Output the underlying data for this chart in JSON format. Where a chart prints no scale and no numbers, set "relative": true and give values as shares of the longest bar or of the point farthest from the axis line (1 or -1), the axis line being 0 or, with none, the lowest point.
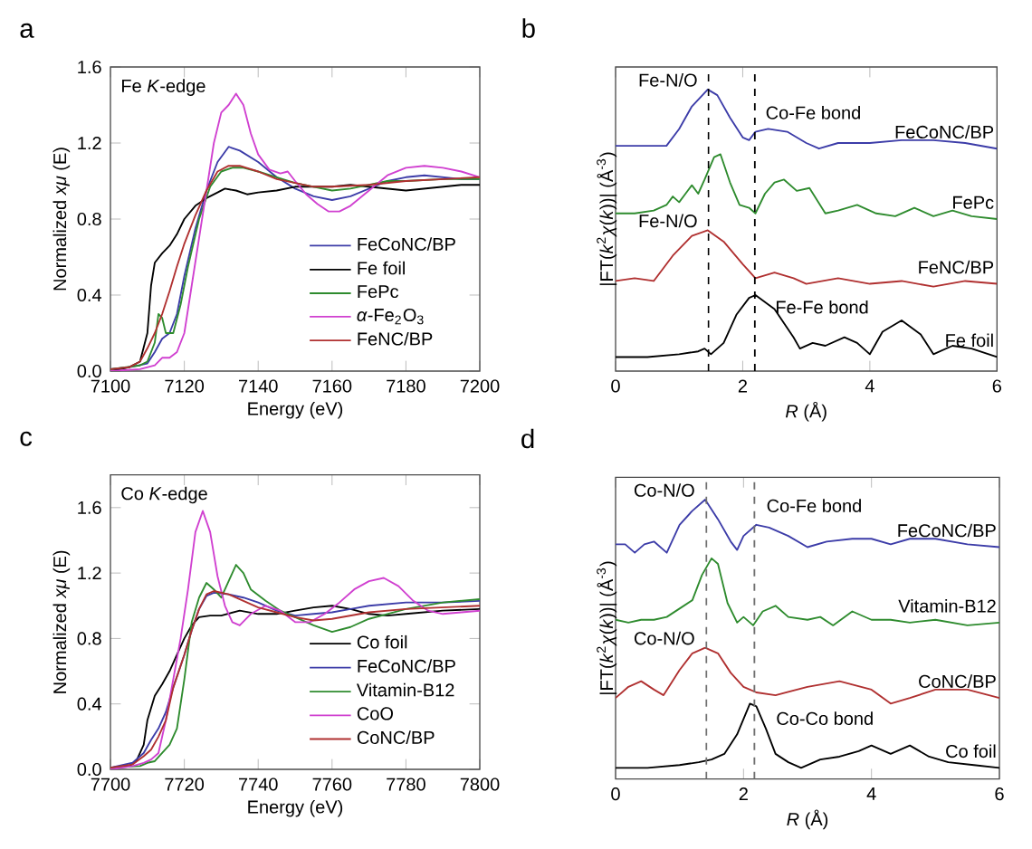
{
  "chart_data": [
    {
      "type": "line",
      "title": "a",
      "xlabel": "Energy (eV)",
      "ylabel": "Normalized *xμ* (E)",
      "xlim": [
        7100,
        7200
      ],
      "ylim": [
        0,
        1.6
      ],
      "xticks": [
        7100,
        7120,
        7140,
        7160,
        7180,
        7200
      ],
      "yticks": [
        {
          "value": 0,
          "label": "0.0"
        },
        {
          "value": 0.4,
          "label": "0.4"
        },
        {
          "value": 0.8,
          "label": "0.8"
        },
        {
          "value": 1.2,
          "label": "1.2"
        },
        {
          "value": 1.6,
          "label": "1.6"
        }
      ],
      "legend": "bottom right",
      "annotations": [
        "Fe *K*-edge"
      ],
      "series": [
        {
          "name": "FeCoNC/BP",
          "color": "#3c3ca8",
          "x": [
            7100,
            7105,
            7110,
            7112,
            7114,
            7116,
            7118,
            7120,
            7123,
            7126,
            7129,
            7132,
            7135,
            7140,
            7145,
            7150,
            7155,
            7160,
            7165,
            7170,
            7175,
            7180,
            7185,
            7190,
            7195,
            7200
          ],
          "values": [
            0.01,
            0.02,
            0.04,
            0.1,
            0.17,
            0.2,
            0.3,
            0.5,
            0.75,
            0.95,
            1.1,
            1.18,
            1.16,
            1.1,
            1.02,
            0.96,
            0.92,
            0.9,
            0.92,
            0.96,
            1.0,
            1.02,
            1.03,
            1.02,
            1.01,
            1.01
          ]
        },
        {
          "name": "Fe foil",
          "color": "#000000",
          "x": [
            7100,
            7105,
            7108,
            7110,
            7111,
            7112,
            7114,
            7116,
            7118,
            7120,
            7123,
            7126,
            7129,
            7131,
            7134,
            7137,
            7140,
            7145,
            7150,
            7155,
            7160,
            7165,
            7170,
            7175,
            7180,
            7185,
            7190,
            7195,
            7200
          ],
          "values": [
            0.0,
            0.02,
            0.05,
            0.2,
            0.45,
            0.57,
            0.62,
            0.66,
            0.72,
            0.8,
            0.87,
            0.91,
            0.94,
            0.96,
            0.95,
            0.93,
            0.94,
            0.95,
            0.97,
            0.97,
            0.97,
            0.98,
            0.97,
            0.96,
            0.95,
            0.96,
            0.97,
            0.98,
            0.98
          ]
        },
        {
          "name": "FePc",
          "color": "#2e8b2e",
          "x": [
            7100,
            7108,
            7110,
            7112,
            7113,
            7114,
            7115,
            7117,
            7119,
            7121,
            7124,
            7127,
            7130,
            7133,
            7136,
            7140,
            7145,
            7150,
            7155,
            7160,
            7165,
            7170,
            7175,
            7180,
            7190,
            7200
          ],
          "values": [
            0.01,
            0.03,
            0.05,
            0.15,
            0.3,
            0.28,
            0.2,
            0.2,
            0.35,
            0.55,
            0.8,
            0.97,
            1.05,
            1.07,
            1.07,
            1.05,
            1.02,
            0.99,
            0.97,
            0.95,
            0.96,
            0.98,
            1.0,
            1.0,
            1.01,
            1.01
          ]
        },
        {
          "name": "*α*-Fe$_{2}$O$_{3}$",
          "color": "#d040d0",
          "x": [
            7100,
            7108,
            7112,
            7114,
            7116,
            7118,
            7120,
            7122,
            7124,
            7126,
            7128,
            7130,
            7132,
            7134,
            7136,
            7138,
            7140,
            7143,
            7146,
            7148,
            7150,
            7153,
            7156,
            7159,
            7162,
            7165,
            7170,
            7175,
            7180,
            7185,
            7190,
            7195,
            7200
          ],
          "values": [
            0.0,
            0.01,
            0.03,
            0.07,
            0.07,
            0.1,
            0.2,
            0.45,
            0.7,
            0.95,
            1.2,
            1.36,
            1.4,
            1.46,
            1.4,
            1.25,
            1.14,
            1.06,
            1.04,
            1.05,
            1.0,
            0.93,
            0.88,
            0.84,
            0.84,
            0.87,
            0.95,
            1.03,
            1.07,
            1.08,
            1.07,
            1.05,
            1.02
          ]
        },
        {
          "name": "FeNC/BP",
          "color": "#b03030",
          "x": [
            7100,
            7105,
            7108,
            7110,
            7112,
            7114,
            7116,
            7118,
            7120,
            7123,
            7126,
            7129,
            7132,
            7135,
            7140,
            7145,
            7150,
            7155,
            7160,
            7170,
            7180,
            7190,
            7200
          ],
          "values": [
            0.01,
            0.02,
            0.05,
            0.12,
            0.2,
            0.3,
            0.42,
            0.55,
            0.67,
            0.82,
            0.95,
            1.05,
            1.08,
            1.08,
            1.05,
            1.01,
            0.99,
            0.97,
            0.97,
            0.98,
            1.0,
            1.01,
            1.02
          ]
        }
      ]
    },
    {
      "type": "line",
      "title": "b",
      "xlabel": "*R* (Å)",
      "ylabel": "|FT(*k*$^{2}$*χ*(*k*))| (Å$^{-3}$)",
      "relative": true,
      "xlim": [
        0,
        6
      ],
      "xticks": [
        0,
        2,
        4,
        6
      ],
      "legend": false,
      "ref_lines": [
        {
          "axis": "x",
          "value": 1.46,
          "color": "#000000",
          "line_style": "dashed"
        },
        {
          "axis": "x",
          "value": 2.19,
          "color": "#000000",
          "line_style": "dashed"
        }
      ],
      "annotations": [
        {
          "text": "Fe-N/O",
          "x": 1.45,
          "y": 1.0
        },
        {
          "text": "Co-Fe bond",
          "x": 2.2,
          "y": 0.85
        },
        {
          "text": "Fe-N/O",
          "x": 1.45,
          "y": 0.5
        },
        {
          "text": "Fe-Fe bond",
          "x": 2.2,
          "y": 0.27
        }
      ],
      "series": [
        {
          "name": "FeCoNC/BP",
          "color": "#3c3ca8",
          "x": [
            0,
            0.3,
            0.6,
            0.8,
            1.0,
            1.2,
            1.45,
            1.6,
            1.8,
            2.0,
            2.1,
            2.2,
            2.4,
            2.7,
            3.0,
            3.2,
            3.5,
            4.0,
            4.5,
            5.0,
            5.5,
            6.0
          ],
          "values": [
            0.8,
            0.8,
            0.8,
            0.8,
            0.86,
            0.94,
            1.0,
            0.98,
            0.9,
            0.83,
            0.82,
            0.85,
            0.86,
            0.85,
            0.81,
            0.79,
            0.81,
            0.81,
            0.82,
            0.82,
            0.81,
            0.79
          ]
        },
        {
          "name": "FePc",
          "color": "#2e8b2e",
          "x": [
            0,
            0.3,
            0.6,
            0.8,
            0.9,
            1.0,
            1.1,
            1.2,
            1.3,
            1.4,
            1.55,
            1.65,
            1.8,
            1.95,
            2.1,
            2.2,
            2.35,
            2.5,
            2.65,
            2.85,
            3.05,
            3.3,
            3.5,
            3.8,
            4.1,
            4.4,
            4.7,
            5.0,
            5.3,
            5.6,
            6.0
          ],
          "values": [
            0.56,
            0.56,
            0.57,
            0.59,
            0.62,
            0.6,
            0.63,
            0.66,
            0.63,
            0.68,
            0.76,
            0.77,
            0.67,
            0.59,
            0.58,
            0.56,
            0.63,
            0.67,
            0.68,
            0.64,
            0.65,
            0.56,
            0.57,
            0.59,
            0.56,
            0.55,
            0.58,
            0.55,
            0.57,
            0.55,
            0.54
          ]
        },
        {
          "name": "FeNC/BP",
          "color": "#b03030",
          "x": [
            0,
            0.3,
            0.6,
            0.9,
            1.2,
            1.45,
            1.7,
            2.0,
            2.2,
            2.5,
            2.8,
            3.0,
            3.5,
            4.0,
            4.5,
            5.0,
            5.5,
            6.0
          ],
          "values": [
            0.32,
            0.33,
            0.32,
            0.41,
            0.48,
            0.5,
            0.46,
            0.38,
            0.33,
            0.35,
            0.33,
            0.31,
            0.33,
            0.31,
            0.32,
            0.3,
            0.32,
            0.31
          ]
        },
        {
          "name": "Fe foil",
          "color": "#000000",
          "x": [
            0,
            0.5,
            1.0,
            1.3,
            1.4,
            1.5,
            1.7,
            1.9,
            2.1,
            2.2,
            2.5,
            2.8,
            2.9,
            3.1,
            3.3,
            3.6,
            3.8,
            4.0,
            4.2,
            4.5,
            4.8,
            5.0,
            5.3,
            5.6,
            6.0
          ],
          "values": [
            0.05,
            0.05,
            0.06,
            0.07,
            0.08,
            0.06,
            0.1,
            0.2,
            0.26,
            0.27,
            0.22,
            0.12,
            0.08,
            0.1,
            0.09,
            0.12,
            0.1,
            0.06,
            0.14,
            0.18,
            0.13,
            0.06,
            0.09,
            0.08,
            0.05
          ]
        }
      ]
    },
    {
      "type": "line",
      "title": "c",
      "xlabel": "Energy (eV)",
      "ylabel": "Normalized *xμ* (E)",
      "xlim": [
        7700,
        7800
      ],
      "ylim": [
        0,
        1.8
      ],
      "xticks": [
        7700,
        7720,
        7740,
        7760,
        7780,
        7800
      ],
      "yticks": [
        {
          "value": 0,
          "label": "0.0"
        },
        {
          "value": 0.4,
          "label": "0.4"
        },
        {
          "value": 0.8,
          "label": "0.8"
        },
        {
          "value": 1.2,
          "label": "1.2"
        },
        {
          "value": 1.6,
          "label": "1.6"
        }
      ],
      "legend": "bottom right",
      "annotations": [
        "Co *K*-edge"
      ],
      "series": [
        {
          "name": "Co foil",
          "color": "#000000",
          "x": [
            7700,
            7705,
            7707,
            7709,
            7710,
            7712,
            7714,
            7716,
            7718,
            7720,
            7722,
            7724,
            7727,
            7730,
            7735,
            7740,
            7745,
            7750,
            7755,
            7760,
            7765,
            7770,
            7775,
            7780,
            7790,
            7800
          ],
          "values": [
            0.01,
            0.02,
            0.05,
            0.15,
            0.3,
            0.45,
            0.52,
            0.6,
            0.7,
            0.8,
            0.88,
            0.93,
            0.94,
            0.94,
            0.97,
            0.95,
            0.95,
            0.97,
            0.99,
            1.0,
            0.98,
            0.95,
            0.94,
            0.95,
            0.97,
            0.98
          ]
        },
        {
          "name": "FeCoNC/BP",
          "color": "#3c3ca8",
          "x": [
            7700,
            7706,
            7709,
            7711,
            7713,
            7715,
            7717,
            7720,
            7722,
            7724,
            7726,
            7728,
            7732,
            7736,
            7740,
            7745,
            7750,
            7755,
            7760,
            7765,
            7770,
            7780,
            7790,
            7800
          ],
          "values": [
            0.01,
            0.04,
            0.1,
            0.18,
            0.25,
            0.35,
            0.5,
            0.7,
            0.85,
            0.98,
            1.06,
            1.08,
            1.07,
            1.05,
            1.02,
            0.97,
            0.94,
            0.95,
            0.96,
            0.98,
            1.0,
            1.02,
            1.02,
            1.03
          ]
        },
        {
          "name": "Vitamin-B12",
          "color": "#2e8b2e",
          "x": [
            7700,
            7708,
            7710,
            7712,
            7714,
            7716,
            7718,
            7720,
            7722,
            7724,
            7726,
            7728,
            7730,
            7732,
            7734,
            7736,
            7738,
            7742,
            7746,
            7750,
            7755,
            7760,
            7765,
            7770,
            7775,
            7780,
            7790,
            7800
          ],
          "values": [
            0.01,
            0.02,
            0.04,
            0.05,
            0.1,
            0.15,
            0.25,
            0.55,
            0.9,
            1.05,
            1.14,
            1.1,
            1.05,
            1.15,
            1.25,
            1.2,
            1.1,
            1.03,
            0.97,
            0.93,
            0.88,
            0.84,
            0.87,
            0.92,
            0.95,
            0.98,
            1.02,
            1.04
          ]
        },
        {
          "name": "CoO",
          "color": "#d040d0",
          "x": [
            7700,
            7706,
            7709,
            7711,
            7713,
            7715,
            7717,
            7719,
            7721,
            7723,
            7725,
            7727,
            7729,
            7731,
            7733,
            7735,
            7738,
            7742,
            7746,
            7750,
            7754,
            7758,
            7762,
            7766,
            7770,
            7774,
            7778,
            7782,
            7786,
            7790,
            7795,
            7800
          ],
          "values": [
            0.0,
            0.02,
            0.04,
            0.06,
            0.1,
            0.3,
            0.55,
            0.8,
            1.1,
            1.45,
            1.58,
            1.45,
            1.18,
            1.0,
            0.9,
            0.88,
            0.95,
            1.0,
            0.97,
            0.9,
            0.9,
            0.95,
            1.02,
            1.1,
            1.15,
            1.17,
            1.12,
            1.03,
            0.97,
            0.95,
            0.96,
            0.97
          ]
        },
        {
          "name": "CoNC/BP",
          "color": "#b03030",
          "x": [
            7700,
            7706,
            7709,
            7711,
            7713,
            7715,
            7717,
            7720,
            7722,
            7724,
            7726,
            7728,
            7732,
            7736,
            7740,
            7745,
            7750,
            7755,
            7760,
            7765,
            7770,
            7780,
            7790,
            7800
          ],
          "values": [
            0.01,
            0.03,
            0.08,
            0.12,
            0.2,
            0.3,
            0.5,
            0.7,
            0.85,
            0.98,
            1.07,
            1.09,
            1.07,
            1.03,
            0.99,
            0.96,
            0.93,
            0.91,
            0.92,
            0.94,
            0.96,
            0.98,
            0.99,
            1.0
          ]
        }
      ]
    },
    {
      "type": "line",
      "title": "d",
      "xlabel": "*R* (Å)",
      "ylabel": "|FT(*k*$^{2}$*χ*(*k*))| (Å$^{-3}$)",
      "relative": true,
      "xlim": [
        0,
        6
      ],
      "xticks": [
        0,
        2,
        4,
        6
      ],
      "legend": false,
      "ref_lines": [
        {
          "axis": "x",
          "value": 1.42,
          "color": "#707070",
          "line_style": "dashed"
        },
        {
          "axis": "x",
          "value": 2.17,
          "color": "#707070",
          "line_style": "dashed"
        }
      ],
      "annotations": [
        {
          "text": "Co-N/O",
          "x": 1.4,
          "y": 1.0
        },
        {
          "text": "Co-Fe bond",
          "x": 2.2,
          "y": 0.91
        },
        {
          "text": "Co-N/O",
          "x": 1.4,
          "y": 0.47
        },
        {
          "text": "Co-Co bond",
          "x": 2.2,
          "y": 0.26
        }
      ],
      "series": [
        {
          "name": "FeCoNC/BP",
          "color": "#3c3ca8",
          "x": [
            0,
            0.15,
            0.3,
            0.45,
            0.6,
            0.8,
            1.0,
            1.2,
            1.4,
            1.6,
            1.8,
            1.9,
            2.0,
            2.2,
            2.4,
            2.7,
            3.0,
            3.3,
            3.7,
            4.0,
            4.3,
            4.6,
            5.0,
            5.5,
            6.0
          ],
          "values": [
            0.84,
            0.84,
            0.81,
            0.84,
            0.85,
            0.81,
            0.91,
            0.96,
            1.0,
            0.93,
            0.85,
            0.82,
            0.87,
            0.91,
            0.9,
            0.87,
            0.83,
            0.85,
            0.86,
            0.86,
            0.84,
            0.86,
            0.86,
            0.84,
            0.83
          ]
        },
        {
          "name": "Vitamin-B12",
          "color": "#2e8b2e",
          "x": [
            0,
            0.2,
            0.4,
            0.6,
            0.8,
            1.0,
            1.2,
            1.35,
            1.5,
            1.6,
            1.75,
            1.9,
            2.0,
            2.15,
            2.3,
            2.5,
            2.7,
            3.0,
            3.2,
            3.4,
            3.7,
            4.0,
            4.3,
            4.6,
            5.0,
            5.5,
            6.0
          ],
          "values": [
            0.57,
            0.56,
            0.57,
            0.57,
            0.58,
            0.61,
            0.64,
            0.73,
            0.79,
            0.77,
            0.63,
            0.56,
            0.58,
            0.55,
            0.6,
            0.62,
            0.58,
            0.57,
            0.58,
            0.55,
            0.6,
            0.57,
            0.57,
            0.56,
            0.57,
            0.55,
            0.56
          ]
        },
        {
          "name": "CoNC/BP",
          "color": "#b03030",
          "x": [
            0,
            0.2,
            0.4,
            0.6,
            0.75,
            1.0,
            1.2,
            1.4,
            1.6,
            1.8,
            2.0,
            2.2,
            2.5,
            3.0,
            3.5,
            4.0,
            4.3,
            4.6,
            5.0,
            5.5,
            6.0
          ],
          "values": [
            0.29,
            0.33,
            0.35,
            0.32,
            0.3,
            0.39,
            0.45,
            0.47,
            0.45,
            0.38,
            0.33,
            0.31,
            0.3,
            0.33,
            0.35,
            0.32,
            0.27,
            0.29,
            0.32,
            0.32,
            0.29
          ]
        },
        {
          "name": "Co foil",
          "color": "#000000",
          "x": [
            0,
            0.5,
            1.0,
            1.3,
            1.5,
            1.7,
            1.9,
            2.1,
            2.2,
            2.35,
            2.5,
            2.7,
            2.9,
            3.2,
            3.5,
            3.8,
            4.0,
            4.3,
            4.6,
            4.9,
            5.2,
            5.6,
            6.0
          ],
          "values": [
            0.04,
            0.04,
            0.05,
            0.06,
            0.07,
            0.09,
            0.16,
            0.27,
            0.26,
            0.18,
            0.09,
            0.06,
            0.04,
            0.07,
            0.08,
            0.1,
            0.12,
            0.09,
            0.12,
            0.08,
            0.06,
            0.05,
            0.04
          ]
        }
      ]
    }
  ]
}
